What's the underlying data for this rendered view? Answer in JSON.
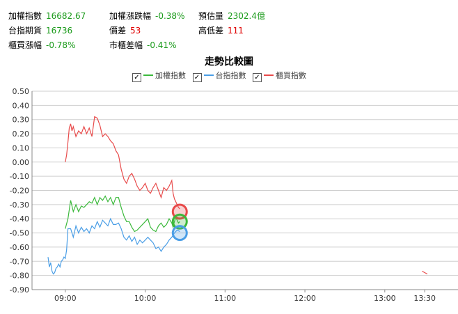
{
  "stats": {
    "taiex_label": "加權指數",
    "taiex_value": "16682.67",
    "change_label": "加權漲跌幅",
    "change_value": "-0.38%",
    "volume_label": "預估量",
    "volume_value": "2302.4億",
    "futures_label": "台指期貨",
    "futures_value": "16736",
    "basis_label": "價差",
    "basis_value": "53",
    "hilo_label": "高低差",
    "hilo_value": "111",
    "otc_label": "櫃買漲幅",
    "otc_value": "-0.78%",
    "otcdiff_label": "市櫃差幅",
    "otcdiff_value": "-0.41%"
  },
  "colors": {
    "green": "#3cb93c",
    "blue": "#4a9ee6",
    "red": "#e84a4a",
    "value_green": "#1a9a1a",
    "value_red": "#e00000"
  },
  "chart_data": {
    "type": "line",
    "title": "走勢比較圖",
    "xlabel": "",
    "ylabel": "",
    "ylim": [
      -0.9,
      0.5
    ],
    "yticks": [
      "0.50",
      "0.40",
      "0.30",
      "0.20",
      "0.10",
      "0.00",
      "-0.10",
      "-0.20",
      "-0.30",
      "-0.40",
      "-0.50",
      "-0.60",
      "-0.70",
      "-0.80",
      "-0.90"
    ],
    "xticks": [
      "09:00",
      "10:00",
      "11:00",
      "12:00",
      "13:00",
      "13:30"
    ],
    "xtick_minutes": [
      540,
      600,
      660,
      720,
      780,
      810
    ],
    "xlim_minutes": [
      515,
      835
    ],
    "legend": "top",
    "grid": "horizontal",
    "series": [
      {
        "name": "加權指數",
        "color": "#3cb93c",
        "x": [
          540,
          542,
          544,
          546,
          548,
          550,
          552,
          554,
          556,
          558,
          560,
          562,
          564,
          566,
          568,
          570,
          572,
          574,
          576,
          578,
          580,
          582,
          584,
          586,
          588,
          590,
          592,
          594,
          596,
          598,
          600,
          602,
          604,
          606,
          608,
          610,
          612,
          614,
          616,
          618,
          620,
          621,
          622,
          623,
          624,
          625,
          626
        ],
        "y": [
          -0.47,
          -0.4,
          -0.27,
          -0.35,
          -0.3,
          -0.35,
          -0.31,
          -0.32,
          -0.3,
          -0.28,
          -0.29,
          -0.25,
          -0.3,
          -0.25,
          -0.27,
          -0.24,
          -0.28,
          -0.25,
          -0.3,
          -0.25,
          -0.25,
          -0.32,
          -0.38,
          -0.42,
          -0.42,
          -0.46,
          -0.49,
          -0.48,
          -0.46,
          -0.44,
          -0.42,
          -0.4,
          -0.46,
          -0.48,
          -0.49,
          -0.45,
          -0.43,
          -0.46,
          -0.44,
          -0.4,
          -0.43,
          -0.46,
          -0.42,
          -0.39,
          -0.41,
          -0.43,
          -0.42
        ]
      },
      {
        "name": "台指指數",
        "color": "#4a9ee6",
        "x": [
          527,
          528,
          529,
          530,
          531,
          532,
          533,
          534,
          535,
          536,
          537,
          538,
          539,
          540,
          541,
          542,
          544,
          546,
          548,
          550,
          552,
          554,
          556,
          558,
          560,
          562,
          564,
          566,
          568,
          570,
          572,
          574,
          576,
          578,
          580,
          582,
          584,
          586,
          588,
          590,
          592,
          594,
          596,
          598,
          600,
          602,
          604,
          606,
          608,
          610,
          612,
          614,
          616,
          618,
          620,
          622,
          624,
          626
        ],
        "y": [
          -0.67,
          -0.74,
          -0.71,
          -0.77,
          -0.79,
          -0.78,
          -0.75,
          -0.74,
          -0.72,
          -0.74,
          -0.7,
          -0.69,
          -0.67,
          -0.68,
          -0.62,
          -0.47,
          -0.47,
          -0.53,
          -0.45,
          -0.5,
          -0.46,
          -0.49,
          -0.47,
          -0.5,
          -0.45,
          -0.47,
          -0.42,
          -0.46,
          -0.41,
          -0.43,
          -0.45,
          -0.4,
          -0.44,
          -0.44,
          -0.43,
          -0.47,
          -0.53,
          -0.55,
          -0.52,
          -0.56,
          -0.53,
          -0.58,
          -0.55,
          -0.57,
          -0.55,
          -0.53,
          -0.55,
          -0.57,
          -0.61,
          -0.6,
          -0.63,
          -0.6,
          -0.58,
          -0.55,
          -0.53,
          -0.5,
          -0.48,
          -0.49
        ]
      },
      {
        "name": "櫃買指數",
        "color": "#e84a4a",
        "x": [
          540,
          541,
          542,
          543,
          544,
          545,
          546,
          548,
          550,
          552,
          554,
          556,
          558,
          560,
          562,
          564,
          566,
          568,
          570,
          572,
          574,
          576,
          578,
          580,
          582,
          584,
          586,
          588,
          590,
          592,
          594,
          596,
          598,
          600,
          602,
          604,
          606,
          608,
          610,
          612,
          614,
          616,
          618,
          620,
          621,
          622,
          623,
          624,
          625,
          626
        ],
        "y": [
          0.0,
          0.05,
          0.14,
          0.24,
          0.27,
          0.22,
          0.25,
          0.18,
          0.22,
          0.2,
          0.25,
          0.2,
          0.24,
          0.18,
          0.32,
          0.31,
          0.26,
          0.18,
          0.2,
          0.18,
          0.15,
          0.13,
          0.08,
          0.05,
          -0.05,
          -0.12,
          -0.15,
          -0.1,
          -0.08,
          -0.12,
          -0.17,
          -0.2,
          -0.18,
          -0.15,
          -0.2,
          -0.22,
          -0.18,
          -0.15,
          -0.2,
          -0.25,
          -0.18,
          -0.2,
          -0.17,
          -0.13,
          -0.22,
          -0.26,
          -0.28,
          -0.3,
          -0.32,
          -0.33
        ]
      },
      {
        "name": "櫃買指數",
        "color": "#e84a4a",
        "x": [
          808,
          812
        ],
        "y": [
          -0.77,
          -0.79
        ]
      }
    ],
    "markers": [
      {
        "series": "櫃買指數",
        "x": 626,
        "y": -0.35
      },
      {
        "series": "加權指數",
        "x": 626,
        "y": -0.42
      },
      {
        "series": "台指指數",
        "x": 626,
        "y": -0.5
      }
    ]
  }
}
